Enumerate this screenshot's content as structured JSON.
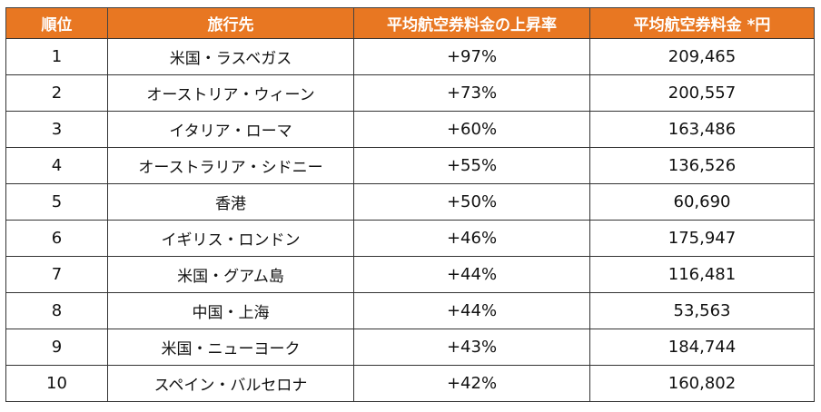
{
  "table": {
    "headers": [
      "順位",
      "旅行先",
      "平均航空券料金の上昇率",
      "平均航空券料金 *円"
    ],
    "rows": [
      {
        "rank": "1",
        "destination": "米国・ラスベガス",
        "rate": "+97%",
        "fare": "209,465"
      },
      {
        "rank": "2",
        "destination": "オーストリア・ウィーン",
        "rate": "+73%",
        "fare": "200,557"
      },
      {
        "rank": "3",
        "destination": "イタリア・ローマ",
        "rate": "+60%",
        "fare": "163,486"
      },
      {
        "rank": "4",
        "destination": "オーストラリア・シドニー",
        "rate": "+55%",
        "fare": "136,526"
      },
      {
        "rank": "5",
        "destination": "香港",
        "rate": "+50%",
        "fare": "60,690"
      },
      {
        "rank": "6",
        "destination": "イギリス・ロンドン",
        "rate": "+46%",
        "fare": "175,947"
      },
      {
        "rank": "7",
        "destination": "米国・グアム島",
        "rate": "+44%",
        "fare": "116,481"
      },
      {
        "rank": "8",
        "destination": "中国・上海",
        "rate": "+44%",
        "fare": "53,563"
      },
      {
        "rank": "9",
        "destination": "米国・ニューヨーク",
        "rate": "+43%",
        "fare": "184,744"
      },
      {
        "rank": "10",
        "destination": "スペイン・バルセロナ",
        "rate": "+42%",
        "fare": "160,802"
      }
    ]
  }
}
